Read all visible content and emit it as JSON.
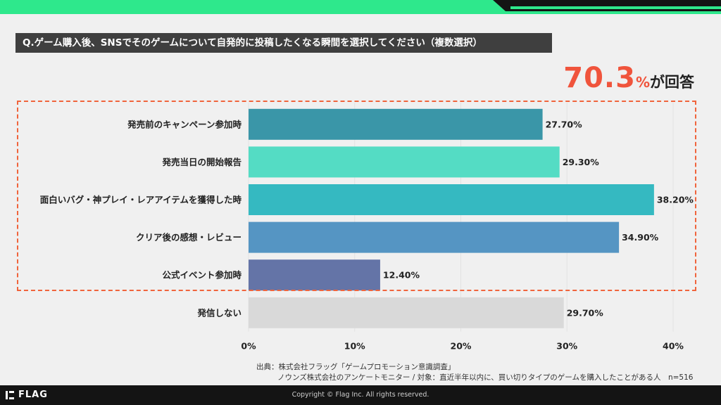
{
  "question": "Q.ゲーム購入後、SNSでそのゲームについて自発的に投稿したくなる瞬間を選択してください（複数選択）",
  "highlight": {
    "value": "70.3",
    "unit": "%",
    "suffix": "が回答"
  },
  "chart_data": {
    "type": "bar",
    "orientation": "horizontal",
    "categories": [
      "発売前のキャンペーン参加時",
      "発売当日の開始報告",
      "面白いバグ・神プレイ・レアアイテムを獲得した時",
      "クリア後の感想・レビュー",
      "公式イベント参加時",
      "発信しない"
    ],
    "values": [
      27.7,
      29.3,
      38.2,
      34.9,
      12.4,
      29.7
    ],
    "value_labels": [
      "27.70%",
      "29.30%",
      "38.20%",
      "34.90%",
      "12.40%",
      "29.70%"
    ],
    "bar_colors": [
      "#3a96a8",
      "#54dcc4",
      "#35b9c1",
      "#5595c3",
      "#6474a7",
      "#d9d9d9"
    ],
    "xlim": [
      0,
      40
    ],
    "x_ticks": [
      0,
      10,
      20,
      30,
      40
    ],
    "x_tick_labels": [
      "0%",
      "10%",
      "20%",
      "30%",
      "40%"
    ],
    "grid": true
  },
  "source": {
    "line1": "出典：株式会社フラッグ「ゲームプロモーション意識調査」",
    "line2": "ノウンズ株式会社のアンケートモニター / 対象：直近半年以内に、買い切りタイプのゲームを購入したことがある人　n=516"
  },
  "footer": {
    "logo": "FLAG",
    "copyright": "Copyright © Flag Inc. All rights reserved."
  },
  "colors": {
    "accent_green": "#2ee88c",
    "highlight_red": "#f0543c",
    "dark": "#141414"
  }
}
